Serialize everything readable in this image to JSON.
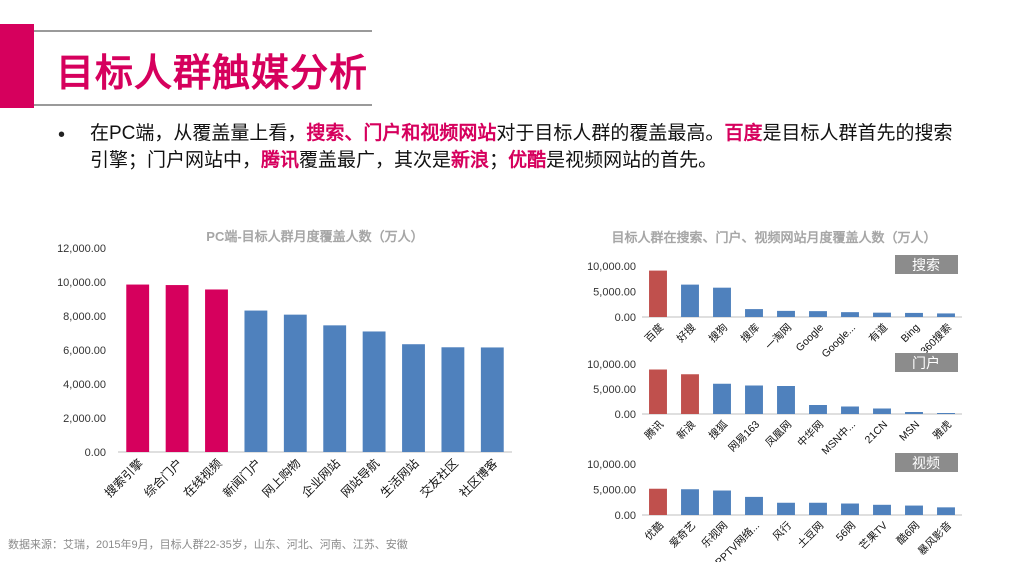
{
  "page": {
    "title": "目标人群触媒分析",
    "bullet": {
      "p1": "在PC端，从覆盖量上看，",
      "h1": "搜索、门户和视频网站",
      "p2": "对于目标人群的覆盖最高。",
      "h2": "百度",
      "p3": "是目标人群首先的搜索引擎；门户网站中，",
      "h3": "腾讯",
      "p4": "覆盖最广，其次是",
      "h4": "新浪",
      "p5": "；",
      "h5": "优酷",
      "p6": "是视频网站的首先。"
    },
    "source": "数据来源：艾瑞，2015年9月，目标人群22-35岁，山东、河北、河南、江苏、安徽",
    "colors": {
      "accent": "#d6005d",
      "blue": "#4f81bd",
      "red": "#c0504d",
      "tag_bg": "#8c8c8c"
    }
  },
  "chart_data": [
    {
      "type": "bar",
      "title": "PC端-目标人群月度覆盖人数（万人）",
      "categories": [
        "搜索引擎",
        "综合门户",
        "在线视频",
        "新闻门户",
        "网上购物",
        "企业网站",
        "网站导航",
        "生活网站",
        "交友社区",
        "社区博客"
      ],
      "values": [
        9850,
        9820,
        9560,
        8320,
        8080,
        7450,
        7090,
        6340,
        6160,
        6150
      ],
      "highlight": [
        true,
        true,
        true,
        false,
        false,
        false,
        false,
        false,
        false,
        false
      ],
      "ylim": [
        0,
        12000
      ],
      "yticks": [
        "12,000.00",
        "10,000.00",
        "8,000.00",
        "6,000.00",
        "4,000.00",
        "2,000.00",
        "0.00"
      ]
    },
    {
      "type": "bar",
      "title": "目标人群在搜索、门户、视频网站月度覆盖人数（万人）",
      "panels": [
        {
          "tag": "搜索",
          "categories": [
            "百度",
            "好搜",
            "搜狗",
            "搜库",
            "一淘网",
            "Google",
            "Google...",
            "有道",
            "Bing",
            "360搜索"
          ],
          "values": [
            9100,
            6350,
            5750,
            1550,
            1200,
            1150,
            950,
            850,
            800,
            700
          ],
          "highlight": [
            true,
            false,
            false,
            false,
            false,
            false,
            false,
            false,
            false,
            false
          ],
          "ylim": [
            0,
            10000
          ],
          "yticks": [
            "10,000.00",
            "5,000.00",
            "0.00"
          ]
        },
        {
          "tag": "门户",
          "categories": [
            "腾讯",
            "新浪",
            "搜狐",
            "网易163",
            "凤凰网",
            "中华网",
            "MSN中...",
            "21CN",
            "MSN",
            "雅虎"
          ],
          "values": [
            8900,
            7950,
            6050,
            5700,
            5600,
            1800,
            1500,
            1100,
            400,
            200
          ],
          "highlight": [
            true,
            true,
            false,
            false,
            false,
            false,
            false,
            false,
            false,
            false
          ],
          "ylim": [
            0,
            10000
          ],
          "yticks": [
            "10,000.00",
            "5,000.00",
            "0.00"
          ]
        },
        {
          "tag": "视频",
          "categories": [
            "优酷",
            "爱奇艺",
            "乐视网",
            "PPTV网络...",
            "风行",
            "土豆网",
            "56网",
            "芒果TV",
            "酷6网",
            "暴风影音"
          ],
          "values": [
            5150,
            5050,
            4800,
            3550,
            2400,
            2400,
            2250,
            2000,
            1850,
            1500
          ],
          "highlight": [
            true,
            false,
            false,
            false,
            false,
            false,
            false,
            false,
            false,
            false
          ],
          "ylim": [
            0,
            10000
          ],
          "yticks": [
            "10,000.00",
            "5,000.00",
            "0.00"
          ]
        }
      ]
    }
  ]
}
